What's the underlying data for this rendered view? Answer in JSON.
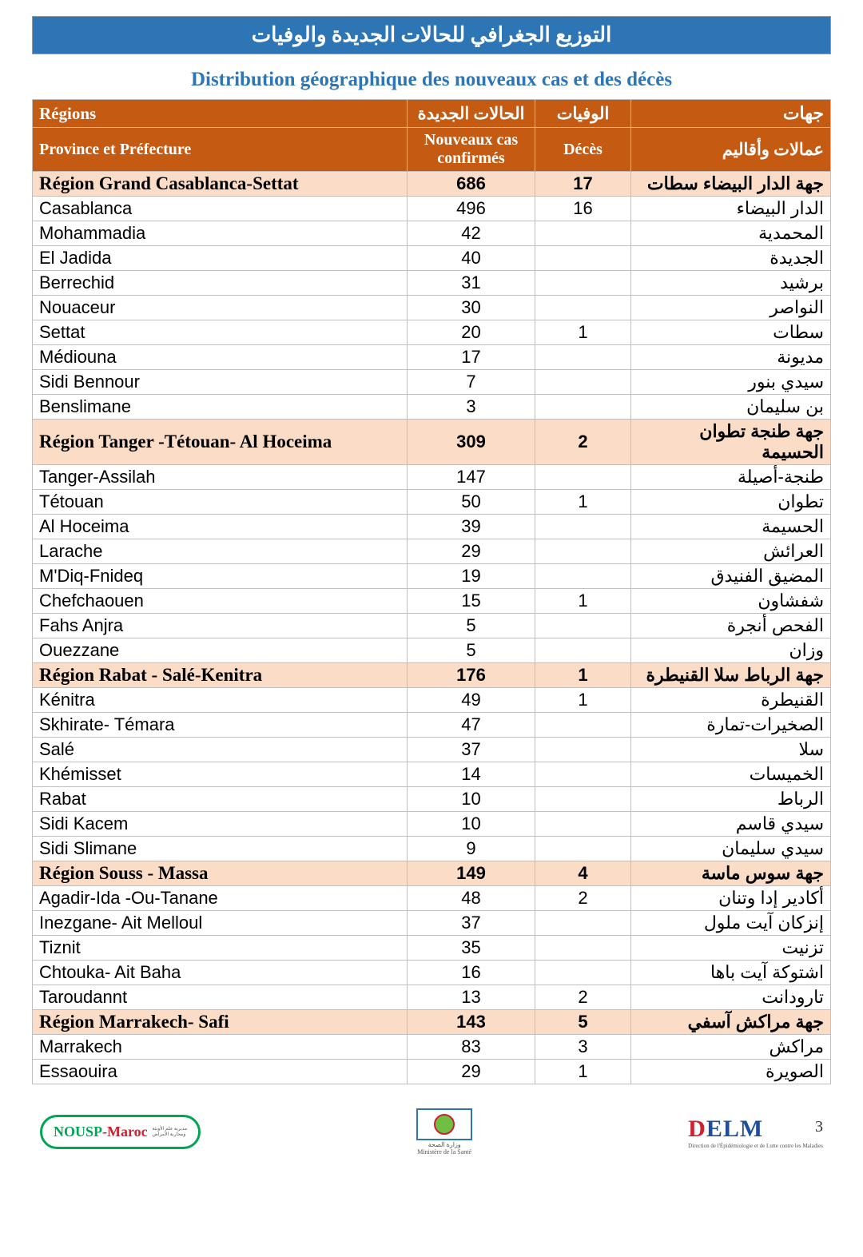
{
  "title_ar": "التوزيع الجغرافي للحالات الجديدة والوفيات",
  "subtitle_fr": "Distribution géographique des nouveaux cas et des décès",
  "header": {
    "fr_top": "Régions",
    "fr_bot": "Province et Préfecture",
    "cases_top": "الحالات الجديدة",
    "cases_bot": "Nouveaux cas confirmés",
    "dec_top": "الوفيات",
    "dec_bot": "Décès",
    "ar_top": "جهات",
    "ar_bot": "عمالات وأقاليم"
  },
  "colors": {
    "band": "#2e75b6",
    "header_bg": "#c55b12",
    "region_bg": "#fadcc7",
    "border": "#bfbfbf"
  },
  "sections": [
    {
      "region": {
        "fr": "Région Grand Casablanca-Settat",
        "cases": "686",
        "dec": "17",
        "ar": "جهة الدار البيضاء سطات"
      },
      "rows": [
        {
          "fr": "Casablanca",
          "cases": "496",
          "dec": "16",
          "ar": "الدار البيضاء"
        },
        {
          "fr": "Mohammadia",
          "cases": "42",
          "dec": "",
          "ar": "المحمدية"
        },
        {
          "fr": "El Jadida",
          "cases": "40",
          "dec": "",
          "ar": "الجديدة"
        },
        {
          "fr": "Berrechid",
          "cases": "31",
          "dec": "",
          "ar": "برشيد"
        },
        {
          "fr": "Nouaceur",
          "cases": "30",
          "dec": "",
          "ar": "النواصر"
        },
        {
          "fr": "Settat",
          "cases": "20",
          "dec": "1",
          "ar": "سطات"
        },
        {
          "fr": "Médiouna",
          "cases": "17",
          "dec": "",
          "ar": "مديونة"
        },
        {
          "fr": "Sidi Bennour",
          "cases": "7",
          "dec": "",
          "ar": "سيدي بنور"
        },
        {
          "fr": "Benslimane",
          "cases": "3",
          "dec": "",
          "ar": "بن سليمان"
        }
      ]
    },
    {
      "region": {
        "fr": "Région Tanger -Tétouan- Al Hoceima",
        "cases": "309",
        "dec": "2",
        "ar": "جهة طنجة تطوان الحسيمة"
      },
      "rows": [
        {
          "fr": "Tanger-Assilah",
          "cases": "147",
          "dec": "",
          "ar": "طنجة-أصيلة"
        },
        {
          "fr": "Tétouan",
          "cases": "50",
          "dec": "1",
          "ar": "تطوان"
        },
        {
          "fr": "Al Hoceima",
          "cases": "39",
          "dec": "",
          "ar": "الحسيمة"
        },
        {
          "fr": "Larache",
          "cases": "29",
          "dec": "",
          "ar": "العرائش"
        },
        {
          "fr": "M'Diq-Fnideq",
          "cases": "19",
          "dec": "",
          "ar": "المضيق الفنيدق"
        },
        {
          "fr": "Chefchaouen",
          "cases": "15",
          "dec": "1",
          "ar": "شفشاون"
        },
        {
          "fr": "Fahs Anjra",
          "cases": "5",
          "dec": "",
          "ar": "الفحص أنجرة"
        },
        {
          "fr": "Ouezzane",
          "cases": "5",
          "dec": "",
          "ar": "وزان"
        }
      ]
    },
    {
      "region": {
        "fr": "Région Rabat - Salé-Kenitra",
        "cases": "176",
        "dec": "1",
        "ar": "جهة الرباط سلا القنيطرة"
      },
      "rows": [
        {
          "fr": "Kénitra",
          "cases": "49",
          "dec": "1",
          "ar": "القنيطرة"
        },
        {
          "fr": "Skhirate- Témara",
          "cases": "47",
          "dec": "",
          "ar": "الصخيرات-تمارة"
        },
        {
          "fr": "Salé",
          "cases": "37",
          "dec": "",
          "ar": "سلا"
        },
        {
          "fr": "Khémisset",
          "cases": "14",
          "dec": "",
          "ar": "الخميسات"
        },
        {
          "fr": "Rabat",
          "cases": "10",
          "dec": "",
          "ar": "الرباط"
        },
        {
          "fr": "Sidi Kacem",
          "cases": "10",
          "dec": "",
          "ar": "سيدي قاسم"
        },
        {
          "fr": "Sidi Slimane",
          "cases": "9",
          "dec": "",
          "ar": "سيدي سليمان"
        }
      ]
    },
    {
      "region": {
        "fr": "Région Souss - Massa",
        "cases": "149",
        "dec": "4",
        "ar": "جهة سوس ماسة"
      },
      "rows": [
        {
          "fr": "Agadir-Ida -Ou-Tanane",
          "cases": "48",
          "dec": "2",
          "ar": "أكادير إدا وتنان"
        },
        {
          "fr": "Inezgane- Ait Melloul",
          "cases": "37",
          "dec": "",
          "ar": "إنزكان آيت ملول"
        },
        {
          "fr": "Tiznit",
          "cases": "35",
          "dec": "",
          "ar": "تزنيت"
        },
        {
          "fr": "Chtouka- Ait Baha",
          "cases": "16",
          "dec": "",
          "ar": "اشتوكة آيت باها"
        },
        {
          "fr": "Taroudannt",
          "cases": "13",
          "dec": "2",
          "ar": "تارودانت"
        }
      ]
    },
    {
      "region": {
        "fr": "Région Marrakech- Safi",
        "cases": "143",
        "dec": "5",
        "ar": "جهة مراكش آسفي"
      },
      "rows": [
        {
          "fr": "Marrakech",
          "cases": "83",
          "dec": "3",
          "ar": "مراكش"
        },
        {
          "fr": "Essaouira",
          "cases": "29",
          "dec": "1",
          "ar": "الصويرة"
        }
      ]
    }
  ],
  "footer": {
    "nousp": "NOUSP-Maroc",
    "ministere_line1": "وزارة الصحة",
    "ministere_line2": "Ministère de la Santé",
    "delm": "DELM",
    "delm_sub": "Direction de l'Épidémiologie et de Lutte contre les Maladies"
  },
  "page_number": "3"
}
